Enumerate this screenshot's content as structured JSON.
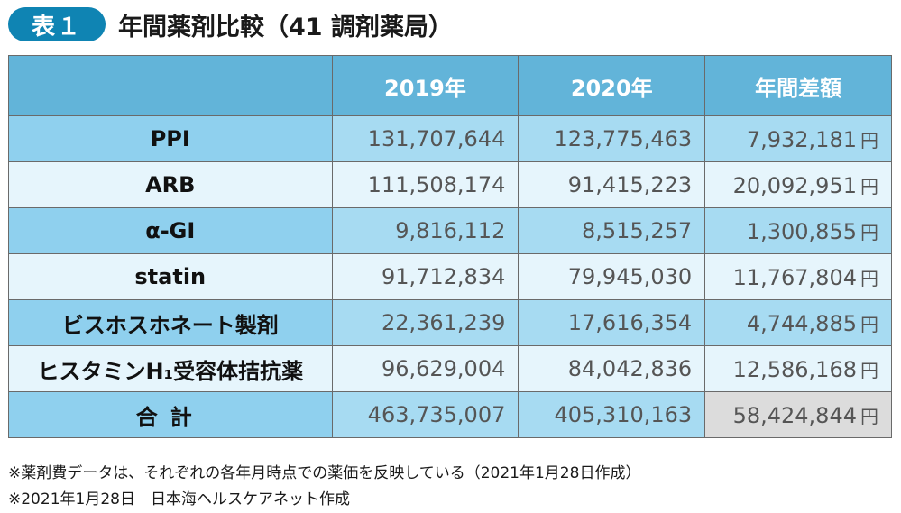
{
  "header": {
    "badge": "表１",
    "title": "年間薬剤比較（41 調剤薬局）"
  },
  "table": {
    "columns": [
      "",
      "2019年",
      "2020年",
      "年間差額"
    ],
    "currency_suffix": "円",
    "rows": [
      {
        "label": "PPI",
        "y2019": "131,707,644",
        "y2020": "123,775,463",
        "diff": "7,932,181"
      },
      {
        "label": "ARB",
        "y2019": "111,508,174",
        "y2020": "91,415,223",
        "diff": "20,092,951"
      },
      {
        "label": "α-GI",
        "y2019": "9,816,112",
        "y2020": "8,515,257",
        "diff": "1,300,855"
      },
      {
        "label": "statin",
        "y2019": "91,712,834",
        "y2020": "79,945,030",
        "diff": "11,767,804"
      },
      {
        "label": "ビスホスホネート製剤",
        "y2019": "22,361,239",
        "y2020": "17,616,354",
        "diff": "4,744,885"
      },
      {
        "label": "ヒスタミンH₁受容体拮抗薬",
        "y2019": "96,629,004",
        "y2020": "84,042,836",
        "diff": "12,586,168"
      }
    ],
    "total": {
      "label": "合計",
      "y2019": "463,735,007",
      "y2020": "405,310,163",
      "diff": "58,424,844"
    }
  },
  "notes": [
    "※薬剤費データは、それぞれの各年月時点での薬価を反映している（2021年1月28日作成）",
    "※2021年1月28日　日本海ヘルスケアネット作成"
  ],
  "colors": {
    "badge": "#0f84b3",
    "header_row": "#62b4d9",
    "row_dark": "#a7dbf2",
    "row_light": "#e6f5fc",
    "total_diff": "#dcdcdc"
  }
}
